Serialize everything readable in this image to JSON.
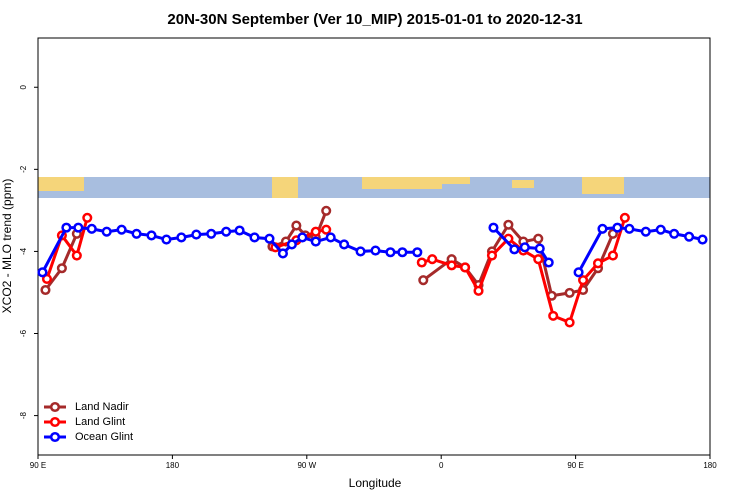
{
  "chart_data": {
    "type": "line",
    "title": "20N-30N September (Ver 10_MIP)   2015-01-01 to 2020-12-31",
    "x_label": "Longitude",
    "y_label": "XCO2 - MLO trend (ppm)",
    "xlim": [
      90,
      540
    ],
    "ylim": [
      -8.96,
      1.2
    ],
    "xticks": [
      {
        "value": 90,
        "label": "90 E"
      },
      180,
      {
        "value": 270,
        "label": "90 W"
      },
      {
        "value": 360,
        "label": "0"
      },
      {
        "value": 450,
        "label": "90 E"
      },
      {
        "value": 540,
        "label": "180"
      }
    ],
    "yticks": [
      0,
      -2,
      -4,
      -6,
      -8
    ],
    "legend": "bottom-left",
    "series": [
      {
        "name": "Land Nadir",
        "color": "#a52a2a",
        "x": [
          95,
          106,
          116,
          null,
          247,
          256,
          263,
          269,
          276,
          283,
          null,
          348,
          367,
          376,
          385,
          394,
          405,
          415,
          425,
          434,
          446,
          455,
          465,
          475
        ],
        "values": [
          -4.94,
          -4.41,
          -3.57,
          null,
          -3.88,
          -3.76,
          -3.37,
          -3.61,
          -3.66,
          -3.01,
          null,
          -4.7,
          -4.19,
          -4.39,
          -4.82,
          -4.0,
          -3.35,
          -3.76,
          -3.69,
          -5.08,
          -5.01,
          -4.94,
          -4.41,
          -3.57
        ]
      },
      {
        "name": "Land Glint",
        "color": "#ff0000",
        "x": [
          96,
          106,
          116,
          123,
          null,
          249,
          263,
          276,
          283,
          null,
          347,
          354,
          367,
          376,
          385,
          394,
          405,
          415,
          425,
          435,
          446,
          455,
          465,
          475,
          483
        ],
        "values": [
          -4.67,
          -3.61,
          -4.1,
          -3.18,
          null,
          -3.9,
          -3.73,
          -3.52,
          -3.47,
          null,
          -4.27,
          -4.19,
          -4.34,
          -4.39,
          -4.96,
          -4.1,
          -3.69,
          -3.98,
          -4.19,
          -5.57,
          -5.73,
          -4.7,
          -4.29,
          -4.1,
          -3.18
        ]
      },
      {
        "name": "Ocean Glint",
        "color": "#0000ff",
        "x": [
          93,
          109,
          117,
          126,
          136,
          146,
          156,
          166,
          176,
          186,
          196,
          206,
          216,
          225,
          235,
          245,
          254,
          260,
          267,
          276,
          286,
          295,
          306,
          316,
          326,
          334,
          344,
          null,
          395,
          409,
          416,
          426,
          432,
          null,
          452,
          468,
          478,
          486,
          497,
          507,
          516,
          526,
          535
        ],
        "values": [
          -4.51,
          -3.42,
          -3.42,
          -3.45,
          -3.52,
          -3.47,
          -3.57,
          -3.61,
          -3.71,
          -3.66,
          -3.59,
          -3.57,
          -3.52,
          -3.49,
          -3.66,
          -3.69,
          -4.05,
          -3.83,
          -3.66,
          -3.76,
          -3.66,
          -3.83,
          -4.0,
          -3.98,
          -4.02,
          -4.02,
          -4.02,
          null,
          -3.42,
          -3.95,
          -3.9,
          -3.93,
          -4.27,
          null,
          -4.51,
          -3.45,
          -3.42,
          -3.45,
          -3.52,
          -3.47,
          -3.57,
          -3.64,
          -3.71
        ]
      }
    ]
  }
}
